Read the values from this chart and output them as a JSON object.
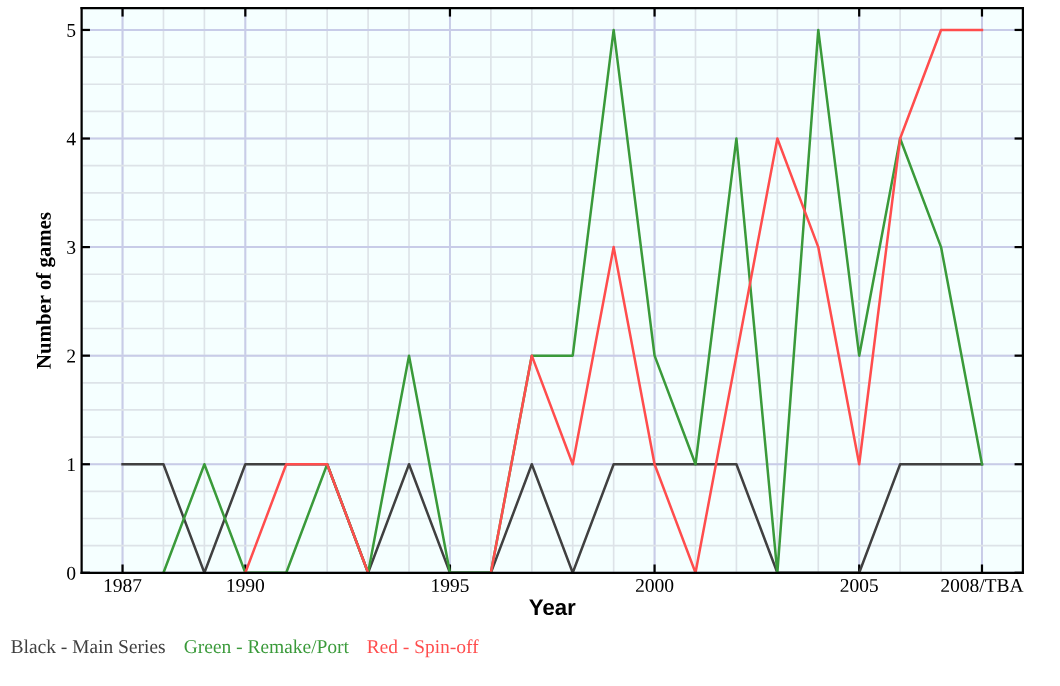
{
  "chart_data": {
    "type": "line",
    "xlabel": "Year",
    "ylabel": "Number of games",
    "x": [
      1987,
      1988,
      1989,
      1990,
      1991,
      1992,
      1993,
      1994,
      1995,
      1996,
      1997,
      1998,
      1999,
      2000,
      2001,
      2002,
      2003,
      2004,
      2005,
      2006,
      2007,
      2008
    ],
    "series": [
      {
        "name": "Black - Main Series",
        "color": "#404040",
        "values": [
          1,
          1,
          0,
          1,
          1,
          1,
          0,
          1,
          0,
          0,
          1,
          0,
          1,
          1,
          1,
          1,
          0,
          0,
          0,
          1,
          1,
          1
        ]
      },
      {
        "name": "Green - Remake/Port",
        "color": "#3a9a3a",
        "values": [
          null,
          0,
          1,
          0,
          0,
          1,
          0,
          2,
          0,
          0,
          2,
          2,
          5,
          2,
          1,
          4,
          0,
          5,
          2,
          4,
          3,
          1
        ]
      },
      {
        "name": "Red - Spin-off",
        "color": "#ff4d4d",
        "values": [
          null,
          null,
          null,
          0,
          1,
          1,
          0,
          null,
          null,
          0,
          2,
          1,
          3,
          1,
          0,
          2,
          4,
          3,
          1,
          4,
          5,
          5
        ]
      }
    ],
    "xlim": [
      1986,
      2009
    ],
    "ylim": [
      0,
      5.2
    ],
    "xticks": [
      1987,
      1990,
      1995,
      2000,
      2005,
      {
        "value": 2008,
        "label": "2008/TBA"
      }
    ],
    "yticks": [
      0,
      1,
      2,
      3,
      4,
      5
    ],
    "grid": true,
    "legend": "bottom left",
    "marker": "none",
    "line_style": "solid"
  }
}
